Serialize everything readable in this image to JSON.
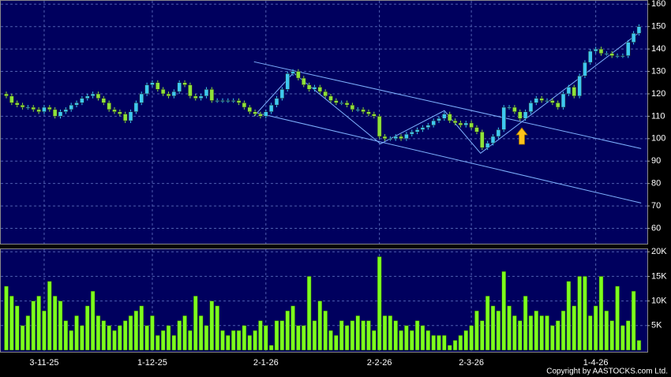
{
  "chart_data": {
    "type": "candlestick",
    "categories": [
      null,
      null,
      null,
      null,
      null,
      null,
      null,
      "3-11-25",
      null,
      null,
      null,
      null,
      null,
      null,
      null,
      null,
      null,
      null,
      null,
      null,
      null,
      null,
      null,
      null,
      null,
      null,
      null,
      "1-12-25",
      null,
      null,
      null,
      null,
      null,
      null,
      null,
      null,
      null,
      null,
      null,
      null,
      null,
      null,
      null,
      null,
      null,
      null,
      null,
      null,
      "2-1-26",
      null,
      null,
      null,
      null,
      null,
      null,
      null,
      null,
      null,
      null,
      null,
      null,
      null,
      null,
      null,
      null,
      null,
      null,
      null,
      null,
      "2-2-26",
      null,
      null,
      null,
      null,
      null,
      null,
      null,
      null,
      null,
      null,
      null,
      null,
      null,
      null,
      null,
      null,
      "2-3-26",
      null,
      null,
      null,
      null,
      null,
      null,
      null,
      null,
      null,
      null,
      null,
      null,
      null,
      null,
      null,
      null,
      null,
      null,
      null,
      null,
      null,
      null,
      "1-4-26",
      null,
      null,
      null,
      null,
      null,
      null,
      null,
      null
    ],
    "open": [
      120,
      119,
      116,
      115,
      114,
      114,
      113,
      112,
      114,
      113,
      110,
      112,
      113,
      115,
      116,
      118,
      119,
      120,
      118,
      116,
      113,
      112,
      111,
      108,
      112,
      116,
      120,
      124,
      125,
      122,
      120,
      119,
      121,
      125,
      124,
      119,
      118,
      119,
      122,
      117,
      117,
      117,
      117,
      117,
      116,
      114,
      112,
      111,
      110,
      112,
      115,
      118,
      122,
      129,
      130,
      127,
      124,
      122,
      123,
      121,
      119,
      117,
      116,
      116,
      115,
      113,
      113,
      112,
      111,
      110,
      101,
      100,
      100,
      101,
      100,
      102,
      103,
      104,
      105,
      106,
      108,
      109,
      111,
      108,
      107,
      106,
      107,
      105,
      103,
      96,
      98,
      101,
      104,
      114,
      114,
      112,
      109,
      112,
      116,
      118,
      117,
      117,
      116,
      114,
      120,
      123,
      119,
      128,
      134,
      139,
      140,
      138,
      138,
      137,
      137,
      137,
      143,
      147
    ],
    "high": [
      121,
      120,
      117,
      116,
      115,
      115,
      114,
      115,
      115,
      114,
      113,
      114,
      116,
      117,
      119,
      120,
      121,
      121,
      119,
      117,
      114,
      113,
      112,
      113,
      117,
      121,
      125,
      126,
      126,
      123,
      121,
      122,
      126,
      126,
      125,
      120,
      120,
      123,
      123,
      118,
      118,
      118,
      118,
      118,
      117,
      115,
      113,
      112,
      113,
      116,
      119,
      123,
      130,
      131,
      131,
      128,
      125,
      124,
      124,
      122,
      120,
      118,
      117,
      117,
      116,
      114,
      114,
      113,
      112,
      111,
      102,
      101,
      102,
      102,
      103,
      104,
      105,
      106,
      107,
      109,
      110,
      112,
      112,
      109,
      108,
      108,
      108,
      106,
      104,
      99,
      102,
      105,
      115,
      115,
      115,
      113,
      113,
      117,
      119,
      119,
      118,
      118,
      117,
      121,
      124,
      124,
      129,
      135,
      140,
      141,
      141,
      139,
      139,
      138,
      138,
      144,
      148,
      151
    ],
    "low": [
      118,
      115,
      114,
      113,
      113,
      112,
      111,
      111,
      112,
      109,
      109,
      111,
      112,
      114,
      115,
      117,
      118,
      117,
      115,
      112,
      111,
      110,
      107,
      107,
      111,
      115,
      119,
      123,
      121,
      119,
      118,
      118,
      120,
      123,
      118,
      117,
      117,
      118,
      116,
      116,
      116,
      116,
      116,
      115,
      113,
      111,
      110,
      109,
      109,
      111,
      114,
      117,
      121,
      128,
      126,
      123,
      121,
      121,
      120,
      118,
      116,
      115,
      115,
      114,
      112,
      112,
      111,
      110,
      109,
      100,
      99,
      99,
      99,
      99,
      99,
      101,
      102,
      103,
      104,
      105,
      107,
      108,
      107,
      106,
      105,
      105,
      104,
      102,
      95,
      95,
      97,
      100,
      103,
      113,
      111,
      108,
      108,
      111,
      115,
      116,
      116,
      115,
      113,
      113,
      119,
      118,
      118,
      127,
      133,
      138,
      137,
      137,
      136,
      136,
      136,
      136,
      142,
      146
    ],
    "close": [
      119,
      116,
      115,
      114,
      114,
      113,
      112,
      114,
      113,
      110,
      112,
      113,
      115,
      116,
      118,
      119,
      120,
      118,
      116,
      113,
      112,
      111,
      108,
      112,
      116,
      120,
      124,
      125,
      122,
      120,
      119,
      121,
      125,
      124,
      119,
      118,
      119,
      122,
      117,
      117,
      117,
      117,
      117,
      116,
      114,
      112,
      111,
      110,
      112,
      115,
      118,
      122,
      129,
      130,
      127,
      124,
      122,
      123,
      121,
      119,
      117,
      116,
      116,
      115,
      113,
      113,
      112,
      111,
      110,
      101,
      100,
      100,
      101,
      100,
      102,
      103,
      104,
      105,
      106,
      108,
      109,
      111,
      108,
      107,
      106,
      107,
      105,
      103,
      96,
      98,
      101,
      104,
      114,
      114,
      112,
      109,
      112,
      116,
      118,
      117,
      117,
      116,
      114,
      120,
      123,
      119,
      128,
      134,
      139,
      140,
      138,
      138,
      137,
      137,
      137,
      143,
      147,
      150
    ],
    "up_color": "#3ec8f0",
    "down_color": "#8ee23a",
    "ylim": [
      53.5,
      161.5
    ],
    "yticks": [
      60,
      70,
      80,
      90,
      100,
      110,
      120,
      130,
      140,
      150,
      160
    ],
    "grid": true,
    "trendlines": [
      {
        "color": "#7fb2ff",
        "points": [
          [
            45.8,
            134.3
          ],
          [
            117.4,
            95.6
          ]
        ]
      },
      {
        "color": "#7fb2ff",
        "points": [
          [
            45.8,
            111.8
          ],
          [
            117.4,
            71.3
          ]
        ]
      },
      {
        "color": "#7fb2ff",
        "points": [
          [
            45.8,
            110.0
          ],
          [
            53.1,
            129.4
          ],
          [
            69.2,
            97.7
          ],
          [
            81.0,
            112.5
          ],
          [
            87.7,
            93.5
          ],
          [
            117.4,
            148.0
          ]
        ]
      }
    ],
    "volume": {
      "color": "#7cff1e",
      "values": [
        13000,
        11000,
        9000,
        5000,
        7000,
        10000,
        11000,
        8000,
        14000,
        11000,
        10000,
        6000,
        4000,
        7000,
        5000,
        9000,
        12000,
        7000,
        6000,
        5000,
        4000,
        5000,
        6000,
        7000,
        8000,
        9000,
        5000,
        7000,
        3000,
        4000,
        5000,
        3000,
        6000,
        7000,
        4000,
        11000,
        7000,
        5000,
        10000,
        9000,
        4000,
        3000,
        4000,
        4000,
        5000,
        3000,
        4000,
        6000,
        5000,
        1000,
        6000,
        6000,
        8000,
        9000,
        5000,
        5000,
        15000,
        6000,
        10000,
        8000,
        4000,
        3000,
        6000,
        5000,
        6000,
        7000,
        6000,
        6000,
        4000,
        19000,
        7000,
        7000,
        6000,
        4000,
        5000,
        4000,
        6000,
        5000,
        4000,
        3000,
        3000,
        3000,
        1000,
        2000,
        3000,
        4000,
        5000,
        8000,
        6000,
        11000,
        9000,
        8000,
        16000,
        9000,
        7000,
        6000,
        11000,
        7000,
        8000,
        7000,
        7000,
        5000,
        6000,
        8000,
        14000,
        9000,
        15000,
        15000,
        7000,
        9000,
        15000,
        8000,
        6000,
        13000,
        5000,
        6000,
        12000,
        2000
      ],
      "ylim": [
        0,
        20200
      ],
      "yticks": [
        {
          "value": 5000,
          "label": "5K"
        },
        {
          "value": 10000,
          "label": "10K"
        },
        {
          "value": 15000,
          "label": "15K"
        },
        {
          "value": 20000,
          "label": "20K"
        }
      ]
    },
    "copyright": "Copyright by AASTOCKS.com Ltd."
  }
}
